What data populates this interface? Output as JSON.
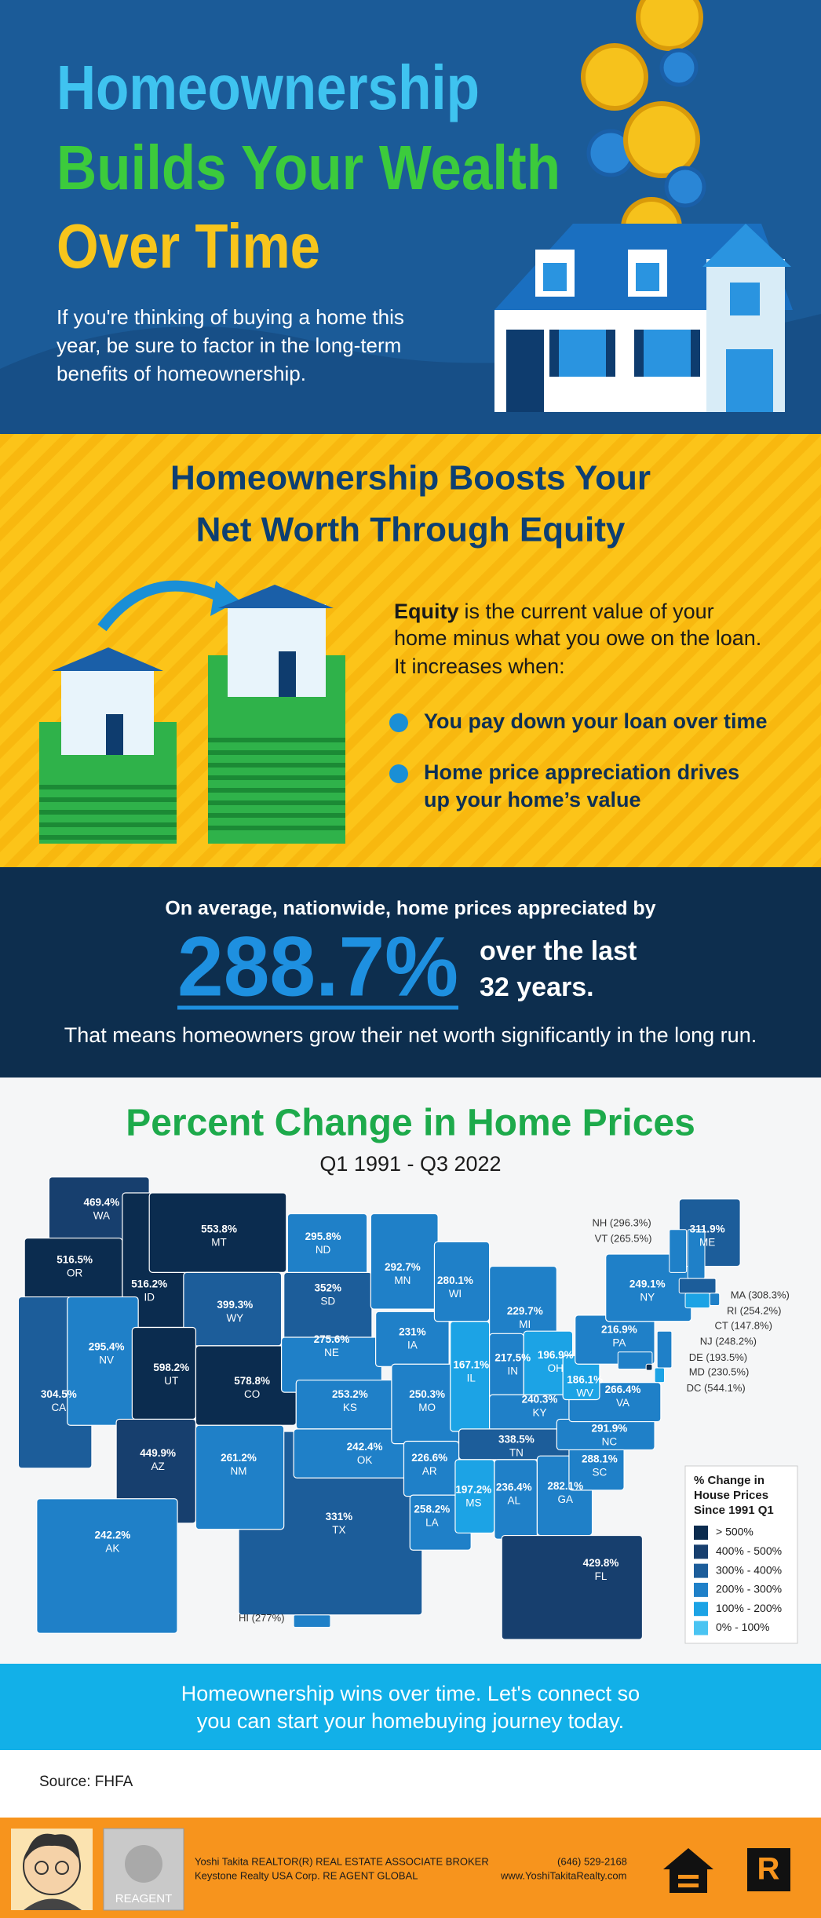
{
  "header": {
    "title_lines": [
      "Homeownership",
      "Builds Your Wealth",
      "Over Time"
    ],
    "intro": [
      "If you're thinking of buying a home this",
      "year, be sure to factor in the long-term",
      "benefits of homeownership."
    ]
  },
  "equity": {
    "heading": [
      "Homeownership Boosts Your",
      "Net Worth Through Equity"
    ],
    "term": "Equity",
    "definition": [
      "is the current value of your",
      "home minus what you owe on the loan.",
      "It increases when:"
    ],
    "bullets": [
      [
        "You pay down your loan over time"
      ],
      [
        "Home price appreciation drives",
        "up your home’s value"
      ]
    ]
  },
  "average": {
    "lead": "On average, nationwide, home prices appreciated by",
    "figure": "288.7%",
    "tail": [
      "over the last",
      "32 years."
    ],
    "conclusion": "That means homeowners grow their net worth significantly in the long run."
  },
  "map": {
    "title": "Percent Change in Home Prices",
    "subtitle": "Q1 1991 - Q3 2022",
    "states": [
      {
        "code": "WA",
        "change": "469.4%",
        "color": "#173f6e"
      },
      {
        "code": "OR",
        "change": "516.5%",
        "color": "#0b2c4f"
      },
      {
        "code": "ID",
        "change": "516.2%",
        "color": "#0b2c4f"
      },
      {
        "code": "MT",
        "change": "553.8%",
        "color": "#0b2c4f"
      },
      {
        "code": "CA",
        "change": "304.5%",
        "color": "#1c5d9a"
      },
      {
        "code": "NV",
        "change": "295.4%",
        "color": "#1f80c8"
      },
      {
        "code": "WY",
        "change": "399.3%",
        "color": "#1c5d9a"
      },
      {
        "code": "UT",
        "change": "598.2%",
        "color": "#0b2c4f"
      },
      {
        "code": "CO",
        "change": "578.8%",
        "color": "#0b2c4f"
      },
      {
        "code": "TX",
        "change": "331%",
        "color": "#1c5d9a"
      },
      {
        "code": "AZ",
        "change": "449.9%",
        "color": "#173f6e"
      },
      {
        "code": "NM",
        "change": "261.2%",
        "color": "#1f80c8"
      },
      {
        "code": "ND",
        "change": "295.8%",
        "color": "#1f80c8"
      },
      {
        "code": "SD",
        "change": "352%",
        "color": "#1c5d9a"
      },
      {
        "code": "NE",
        "change": "275.6%",
        "color": "#1f80c8"
      },
      {
        "code": "KS",
        "change": "253.2%",
        "color": "#1f80c8"
      },
      {
        "code": "OK",
        "change": "242.4%",
        "color": "#1f80c8"
      },
      {
        "code": "MN",
        "change": "292.7%",
        "color": "#1f80c8"
      },
      {
        "code": "IA",
        "change": "231%",
        "color": "#1f80c8"
      },
      {
        "code": "MO",
        "change": "250.3%",
        "color": "#1f80c8"
      },
      {
        "code": "AR",
        "change": "226.6%",
        "color": "#1f80c8"
      },
      {
        "code": "LA",
        "change": "258.2%",
        "color": "#1f80c8"
      },
      {
        "code": "WI",
        "change": "280.1%",
        "color": "#1f80c8"
      },
      {
        "code": "IL",
        "change": "167.1%",
        "color": "#1ca3e5"
      },
      {
        "code": "MI",
        "change": "229.7%",
        "color": "#1f80c8"
      },
      {
        "code": "IN",
        "change": "217.5%",
        "color": "#1f80c8"
      },
      {
        "code": "OH",
        "change": "196.9%",
        "color": "#1ca3e5"
      },
      {
        "code": "KY",
        "change": "240.3%",
        "color": "#1f80c8"
      },
      {
        "code": "TN",
        "change": "338.5%",
        "color": "#1c5d9a"
      },
      {
        "code": "MS",
        "change": "197.2%",
        "color": "#1ca3e5"
      },
      {
        "code": "AL",
        "change": "236.4%",
        "color": "#1f80c8"
      },
      {
        "code": "GA",
        "change": "282.1%",
        "color": "#1f80c8"
      },
      {
        "code": "FL",
        "change": "429.8%",
        "color": "#173f6e"
      },
      {
        "code": "SC",
        "change": "288.1%",
        "color": "#1f80c8"
      },
      {
        "code": "NC",
        "change": "291.9%",
        "color": "#1f80c8"
      },
      {
        "code": "VA",
        "change": "266.4%",
        "color": "#1f80c8"
      },
      {
        "code": "WV",
        "change": "186.1%",
        "color": "#1ca3e5"
      },
      {
        "code": "PA",
        "change": "216.9%",
        "color": "#1f80c8"
      },
      {
        "code": "NY",
        "change": "249.1%",
        "color": "#1f80c8"
      },
      {
        "code": "ME",
        "change": "311.9%",
        "color": "#1c5d9a"
      },
      {
        "code": "AK",
        "change": "242.2%",
        "color": "#1f80c8"
      }
    ],
    "callouts": [
      {
        "text": "NH (296.3%)",
        "color": "#1f80c8"
      },
      {
        "text": "VT (265.5%)",
        "color": "#1f80c8"
      },
      {
        "text": "MA (308.3%)",
        "color": "#1c5d9a"
      },
      {
        "text": "RI (254.2%)",
        "color": "#1f80c8"
      },
      {
        "text": "CT (147.8%)",
        "color": "#1ca3e5"
      },
      {
        "text": "NJ (248.2%)",
        "color": "#1f80c8"
      },
      {
        "text": "DE (193.5%)",
        "color": "#1ca3e5"
      },
      {
        "text": "MD (230.5%)",
        "color": "#1f80c8"
      },
      {
        "text": "DC (544.1%)",
        "color": "#0b2c4f"
      },
      {
        "text": "HI (277%)",
        "color": "#1f80c8"
      }
    ],
    "legend": {
      "title": [
        "% Change in",
        "House Prices",
        "Since 1991 Q1"
      ],
      "items": [
        {
          "label": "> 500%",
          "color": "#0b2c4f"
        },
        {
          "label": "400% - 500%",
          "color": "#173f6e"
        },
        {
          "label": "300% - 400%",
          "color": "#1c5d9a"
        },
        {
          "label": "200% - 300%",
          "color": "#1f80c8"
        },
        {
          "label": "100% - 200%",
          "color": "#1ca3e5"
        },
        {
          "label": "0% - 100%",
          "color": "#4ac4f2"
        }
      ]
    }
  },
  "cta": {
    "lines": [
      "Homeownership wins over time. Let's connect so",
      "you can start your homebuying journey today."
    ]
  },
  "source": "Source: FHFA",
  "footer": {
    "agent_lines": [
      "Yoshi Takita REALTOR(R) REAL ESTATE ASSOCIATE BROKER",
      "Keystone Realty USA Corp.  RE AGENT GLOBAL"
    ],
    "contact": [
      "(646) 529-2168",
      "www.YoshiTakitaRealty.com"
    ],
    "logo_text": "REAGENT"
  }
}
